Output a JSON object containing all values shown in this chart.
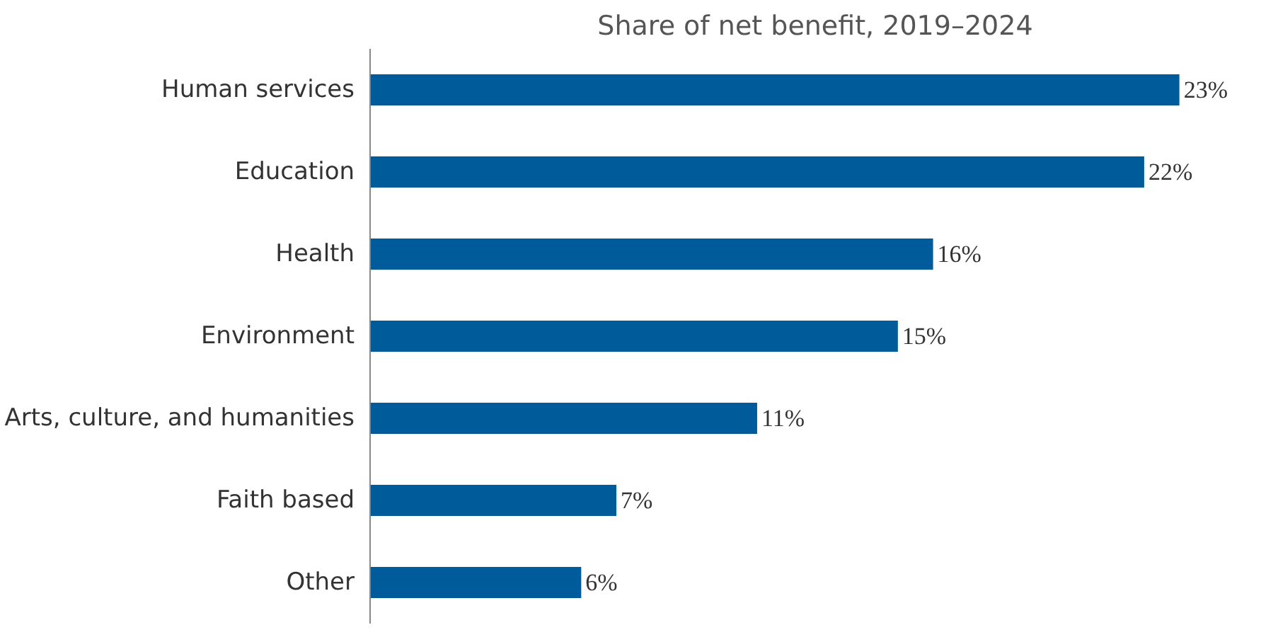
{
  "chart_data": {
    "type": "bar",
    "orientation": "horizontal",
    "title": "Share of net benefit, 2019–2024",
    "categories": [
      "Human services",
      "Education",
      "Health",
      "Environment",
      "Arts, culture, and humanities",
      "Faith based",
      "Other"
    ],
    "values": [
      23,
      22,
      16,
      15,
      11,
      7,
      6
    ],
    "value_labels": [
      "23%",
      "22%",
      "16%",
      "15%",
      "11%",
      "7%",
      "6%"
    ],
    "color": "#005b9a"
  }
}
